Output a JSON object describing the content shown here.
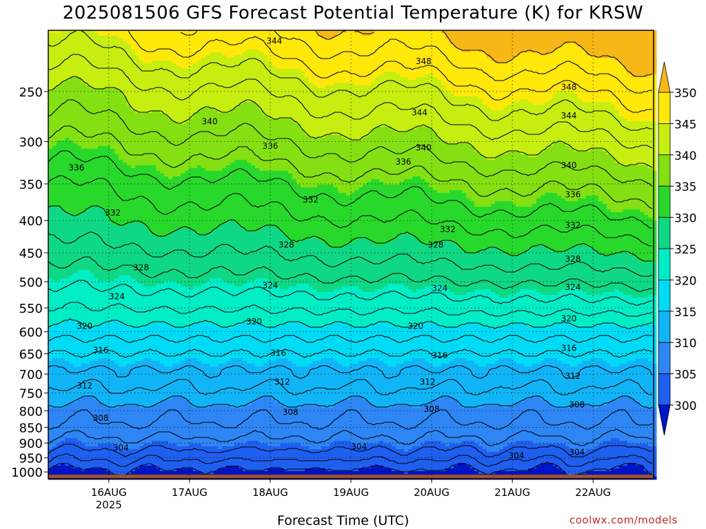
{
  "chart_data": {
    "type": "heatmap",
    "title": "2025081506 GFS Forecast Potential Temperature (K) for KRSW",
    "xlabel": "Forecast Time (UTC)",
    "ylabel": "",
    "x_ticks": [
      {
        "day": 16,
        "label": "16AUG",
        "sublabel": "2025"
      },
      {
        "day": 17,
        "label": "17AUG",
        "sublabel": ""
      },
      {
        "day": 18,
        "label": "18AUG",
        "sublabel": ""
      },
      {
        "day": 19,
        "label": "19AUG",
        "sublabel": ""
      },
      {
        "day": 20,
        "label": "20AUG",
        "sublabel": ""
      },
      {
        "day": 21,
        "label": "21AUG",
        "sublabel": ""
      },
      {
        "day": 22,
        "label": "22AUG",
        "sublabel": ""
      }
    ],
    "xlim_day": [
      15.25,
      22.75
    ],
    "y_axis": {
      "unit": "hPa",
      "reversed": true,
      "scale": "log",
      "ylim": [
        1025,
        200
      ],
      "ticks": [
        250,
        300,
        350,
        400,
        450,
        500,
        550,
        600,
        650,
        700,
        750,
        800,
        850,
        900,
        950,
        1000
      ]
    },
    "colorbar": {
      "levels": [
        300,
        305,
        310,
        315,
        320,
        325,
        330,
        335,
        340,
        345,
        350
      ],
      "labels": [
        "300",
        "305",
        "310",
        "315",
        "320",
        "325",
        "330",
        "335",
        "340",
        "345",
        "350"
      ],
      "colors": [
        "#0014c8",
        "#1f5ff0",
        "#2e86f5",
        "#11b5f7",
        "#00dbf5",
        "#00edc6",
        "#0fd884",
        "#28d92c",
        "#84e012",
        "#c6ee10",
        "#ffe80a",
        "#f7b817"
      ],
      "extend": "both"
    },
    "profile": {
      "pressure": [
        1000,
        950,
        900,
        850,
        800,
        750,
        700,
        650,
        600,
        550,
        500,
        450,
        400,
        350,
        300,
        250,
        200
      ],
      "theta": [
        300,
        303,
        305.5,
        307.5,
        309,
        311.5,
        313.5,
        316,
        319,
        322.5,
        325.5,
        328.5,
        331.5,
        334.5,
        338.5,
        343,
        349
      ]
    },
    "contour_interval": 2,
    "contour_labels": [
      {
        "text": "304",
        "day": 16.15,
        "p": 915
      },
      {
        "text": "304",
        "day": 19.1,
        "p": 912
      },
      {
        "text": "304",
        "day": 21.05,
        "p": 942
      },
      {
        "text": "304",
        "day": 21.8,
        "p": 930
      },
      {
        "text": "308",
        "day": 15.9,
        "p": 822
      },
      {
        "text": "308",
        "day": 18.25,
        "p": 805
      },
      {
        "text": "308",
        "day": 20.0,
        "p": 795
      },
      {
        "text": "308",
        "day": 21.8,
        "p": 783
      },
      {
        "text": "312",
        "day": 15.7,
        "p": 730
      },
      {
        "text": "312",
        "day": 18.15,
        "p": 720
      },
      {
        "text": "312",
        "day": 19.95,
        "p": 720
      },
      {
        "text": "312",
        "day": 21.75,
        "p": 705
      },
      {
        "text": "316",
        "day": 15.9,
        "p": 642
      },
      {
        "text": "316",
        "day": 18.1,
        "p": 648
      },
      {
        "text": "316",
        "day": 20.1,
        "p": 654
      },
      {
        "text": "316",
        "day": 21.7,
        "p": 637
      },
      {
        "text": "320",
        "day": 15.7,
        "p": 588
      },
      {
        "text": "320",
        "day": 17.8,
        "p": 578
      },
      {
        "text": "320",
        "day": 19.8,
        "p": 588
      },
      {
        "text": "320",
        "day": 21.7,
        "p": 572
      },
      {
        "text": "324",
        "day": 16.1,
        "p": 528
      },
      {
        "text": "324",
        "day": 18.0,
        "p": 507
      },
      {
        "text": "324",
        "day": 20.1,
        "p": 512
      },
      {
        "text": "324",
        "day": 21.75,
        "p": 510
      },
      {
        "text": "328",
        "day": 16.4,
        "p": 475
      },
      {
        "text": "328",
        "day": 18.2,
        "p": 437
      },
      {
        "text": "328",
        "day": 20.05,
        "p": 437
      },
      {
        "text": "328",
        "day": 21.75,
        "p": 460
      },
      {
        "text": "332",
        "day": 16.05,
        "p": 389
      },
      {
        "text": "332",
        "day": 18.5,
        "p": 371
      },
      {
        "text": "332",
        "day": 20.2,
        "p": 413
      },
      {
        "text": "332",
        "day": 21.75,
        "p": 407
      },
      {
        "text": "336",
        "day": 15.6,
        "p": 330
      },
      {
        "text": "336",
        "day": 18.0,
        "p": 305
      },
      {
        "text": "336",
        "day": 19.65,
        "p": 323
      },
      {
        "text": "336",
        "day": 21.75,
        "p": 364
      },
      {
        "text": "340",
        "day": 17.25,
        "p": 279
      },
      {
        "text": "340",
        "day": 19.9,
        "p": 307
      },
      {
        "text": "340",
        "day": 21.7,
        "p": 327
      },
      {
        "text": "344",
        "day": 18.05,
        "p": 208
      },
      {
        "text": "344",
        "day": 19.85,
        "p": 270
      },
      {
        "text": "344",
        "day": 21.7,
        "p": 273
      },
      {
        "text": "348",
        "day": 19.9,
        "p": 224
      },
      {
        "text": "348",
        "day": 21.7,
        "p": 246
      }
    ],
    "grid": true,
    "ground_color": "#a0522d",
    "legend": "right"
  },
  "credit": "coolwx.com/models"
}
